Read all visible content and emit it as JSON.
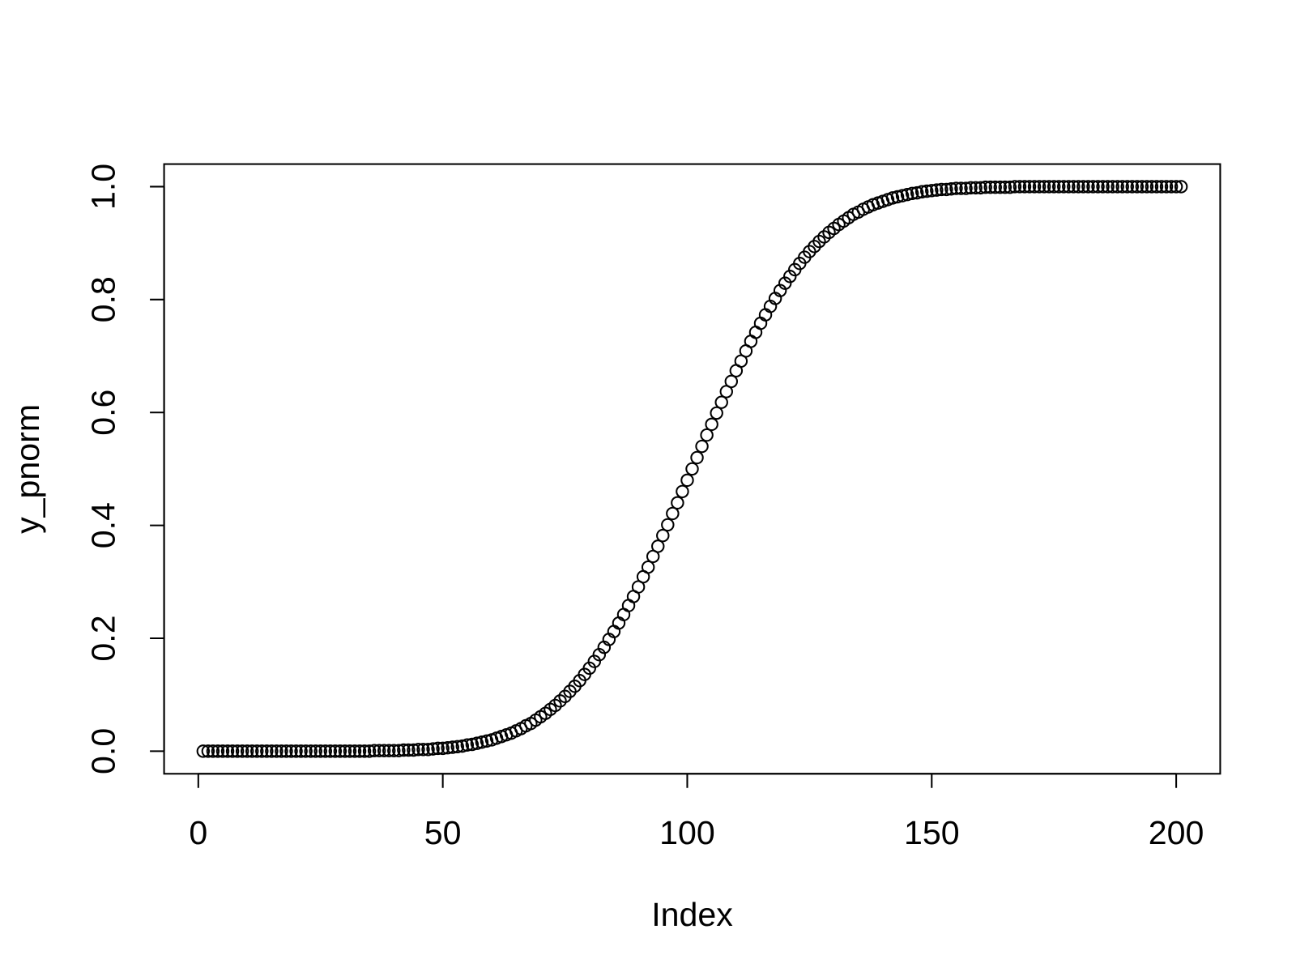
{
  "chart_data": {
    "type": "scatter",
    "xlabel": "Index",
    "ylabel": "y_pnorm",
    "x": [
      1,
      2,
      3,
      4,
      5,
      6,
      7,
      8,
      9,
      10,
      11,
      12,
      13,
      14,
      15,
      16,
      17,
      18,
      19,
      20,
      21,
      22,
      23,
      24,
      25,
      26,
      27,
      28,
      29,
      30,
      31,
      32,
      33,
      34,
      35,
      36,
      37,
      38,
      39,
      40,
      41,
      42,
      43,
      44,
      45,
      46,
      47,
      48,
      49,
      50,
      51,
      52,
      53,
      54,
      55,
      56,
      57,
      58,
      59,
      60,
      61,
      62,
      63,
      64,
      65,
      66,
      67,
      68,
      69,
      70,
      71,
      72,
      73,
      74,
      75,
      76,
      77,
      78,
      79,
      80,
      81,
      82,
      83,
      84,
      85,
      86,
      87,
      88,
      89,
      90,
      91,
      92,
      93,
      94,
      95,
      96,
      97,
      98,
      99,
      100,
      101,
      102,
      103,
      104,
      105,
      106,
      107,
      108,
      109,
      110,
      111,
      112,
      113,
      114,
      115,
      116,
      117,
      118,
      119,
      120,
      121,
      122,
      123,
      124,
      125,
      126,
      127,
      128,
      129,
      130,
      131,
      132,
      133,
      134,
      135,
      136,
      137,
      138,
      139,
      140,
      141,
      142,
      143,
      144,
      145,
      146,
      147,
      148,
      149,
      150,
      151,
      152,
      153,
      154,
      155,
      156,
      157,
      158,
      159,
      160,
      161,
      162,
      163,
      164,
      165,
      166,
      167,
      168,
      169,
      170,
      171,
      172,
      173,
      174,
      175,
      176,
      177,
      178,
      179,
      180,
      181,
      182,
      183,
      184,
      185,
      186,
      187,
      188,
      189,
      190,
      191,
      192,
      193,
      194,
      195,
      196,
      197,
      198,
      199,
      200,
      201
    ],
    "values": [
      0,
      0,
      0,
      0,
      0,
      0,
      0,
      0,
      0,
      0,
      0,
      0,
      0,
      0,
      0,
      0,
      0,
      0,
      0,
      0,
      0,
      0,
      0,
      0,
      0,
      0,
      0,
      0,
      0,
      0,
      0,
      0,
      0,
      0,
      0,
      0.001,
      0.001,
      0.001,
      0.001,
      0.001,
      0.001,
      0.002,
      0.002,
      0.002,
      0.003,
      0.003,
      0.003,
      0.004,
      0.005,
      0.005,
      0.006,
      0.007,
      0.008,
      0.009,
      0.011,
      0.012,
      0.014,
      0.016,
      0.018,
      0.02,
      0.023,
      0.026,
      0.029,
      0.032,
      0.036,
      0.04,
      0.045,
      0.049,
      0.055,
      0.061,
      0.067,
      0.074,
      0.081,
      0.089,
      0.097,
      0.106,
      0.115,
      0.125,
      0.136,
      0.147,
      0.159,
      0.171,
      0.184,
      0.198,
      0.212,
      0.227,
      0.242,
      0.258,
      0.274,
      0.291,
      0.309,
      0.326,
      0.345,
      0.363,
      0.382,
      0.401,
      0.421,
      0.44,
      0.46,
      0.48,
      0.5,
      0.52,
      0.54,
      0.56,
      0.579,
      0.599,
      0.618,
      0.637,
      0.655,
      0.674,
      0.691,
      0.709,
      0.726,
      0.742,
      0.758,
      0.773,
      0.788,
      0.802,
      0.816,
      0.829,
      0.841,
      0.853,
      0.864,
      0.875,
      0.885,
      0.894,
      0.903,
      0.911,
      0.919,
      0.926,
      0.933,
      0.939,
      0.945,
      0.951,
      0.955,
      0.96,
      0.964,
      0.968,
      0.971,
      0.974,
      0.977,
      0.98,
      0.982,
      0.984,
      0.986,
      0.988,
      0.989,
      0.991,
      0.992,
      0.993,
      0.994,
      0.995,
      0.995,
      0.996,
      0.997,
      0.997,
      0.997,
      0.998,
      0.998,
      0.998,
      0.999,
      0.999,
      0.999,
      0.999,
      0.999,
      0.999,
      1,
      1,
      1,
      1,
      1,
      1,
      1,
      1,
      1,
      1,
      1,
      1,
      1,
      1,
      1,
      1,
      1,
      1,
      1,
      1,
      1,
      1,
      1,
      1,
      1,
      1,
      1,
      1,
      1,
      1,
      1,
      1,
      1,
      1,
      1
    ],
    "color": "#000000",
    "xlim": [
      -7,
      209
    ],
    "xticks": [
      0,
      50,
      100,
      150,
      200
    ],
    "ylim": [
      -0.04,
      1.04
    ],
    "yticks": [
      {
        "value": 0,
        "label": "0.0"
      },
      0.2,
      0.4,
      0.6,
      0.8,
      {
        "value": 1,
        "label": "1.0"
      }
    ]
  }
}
